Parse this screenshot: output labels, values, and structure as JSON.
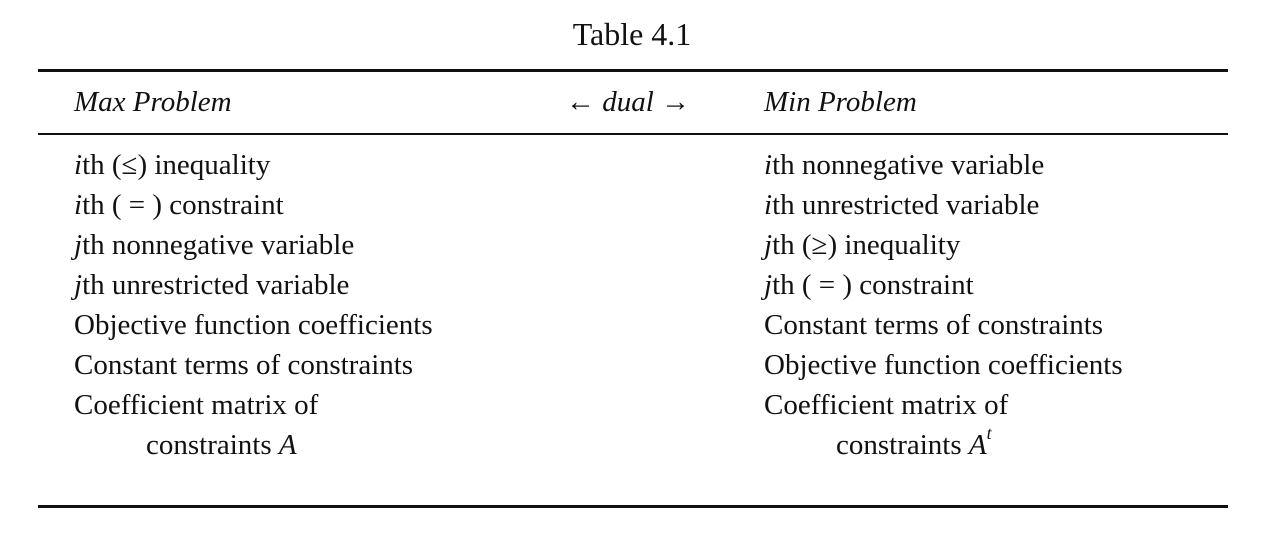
{
  "table": {
    "caption": "Table 4.1",
    "header": {
      "left": "Max Problem",
      "middle": "← dual →",
      "right": "Min Problem"
    },
    "rows": [
      {
        "left": {
          "var": "i",
          "text": "th (≤) inequality"
        },
        "right": {
          "var": "i",
          "text": "th nonnegative variable"
        }
      },
      {
        "left": {
          "var": "i",
          "text": "th ( = ) constraint"
        },
        "right": {
          "var": "i",
          "text": "th unrestricted variable"
        }
      },
      {
        "left": {
          "var": "j",
          "text": "th nonnegative variable"
        },
        "right": {
          "var": "j",
          "text": "th (≥) inequality"
        }
      },
      {
        "left": {
          "var": "j",
          "text": "th unrestricted variable"
        },
        "right": {
          "var": "j",
          "text": "th ( = ) constraint"
        }
      },
      {
        "left": {
          "text": "Objective function coefficients"
        },
        "right": {
          "text": "Constant terms of constraints"
        }
      },
      {
        "left": {
          "text": "Constant terms of constraints"
        },
        "right": {
          "text": "Objective function coefficients"
        }
      },
      {
        "left": {
          "text": "Coefficient matrix of"
        },
        "right": {
          "text": "Coefficient matrix of"
        }
      },
      {
        "indent": true,
        "left": {
          "text": "constraints ",
          "math": "A"
        },
        "right": {
          "text": "constraints ",
          "math": "A",
          "sup": "t"
        }
      }
    ]
  }
}
